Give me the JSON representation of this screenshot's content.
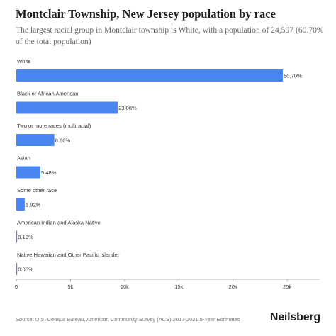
{
  "title": "Montclair Township, New Jersey population by race",
  "subtitle": "The largest racial group in Montclair township is White, with a population of 24,597 (60.70% of the total population)",
  "source": "Source: U.S. Census Bureau, American Community Survey (ACS) 2017-2021 5-Year Estimates",
  "brand": "Neilsberg",
  "colors": {
    "bar": "#4a86f0",
    "axis": "#999999",
    "grid": "#e6e6e6"
  },
  "chart_data": {
    "type": "bar",
    "orientation": "horizontal",
    "categories": [
      "White",
      "Black or African American",
      "Two or more races (multiracial)",
      "Asian",
      "Some other race",
      "American Indian and Alaska Native",
      "Native Hawaiian and Other Pacific Islander"
    ],
    "values": [
      24597,
      9353,
      3509,
      2221,
      778,
      41,
      24
    ],
    "data_labels": [
      "60.70%",
      "23.08%",
      "8.66%",
      "5.48%",
      "1.92%",
      "0.10%",
      "0.06%"
    ],
    "xlim": [
      0,
      28000
    ],
    "xticks": [
      0,
      5000,
      10000,
      15000,
      20000,
      25000
    ],
    "xtick_labels": [
      "0",
      "5k",
      "10k",
      "15k",
      "20k",
      "25k"
    ],
    "grid": false,
    "legend": "none"
  }
}
